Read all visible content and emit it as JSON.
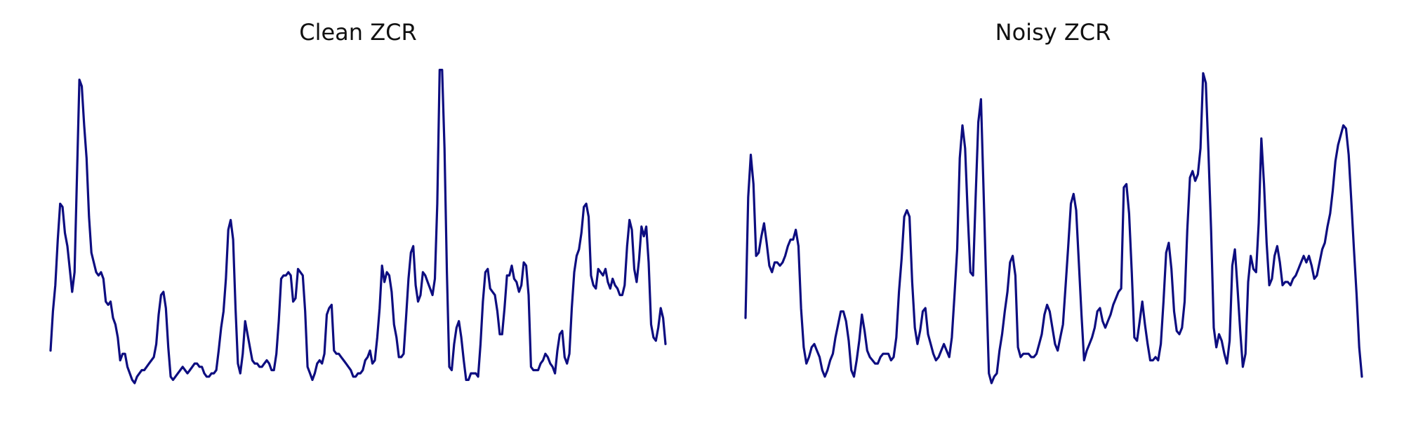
{
  "colors": {
    "line": "#0d0d80",
    "background": "#ffffff"
  },
  "chart_data": [
    {
      "type": "line",
      "title": "Clean ZCR",
      "xlabel": "",
      "ylabel": "",
      "axes": "off",
      "grid": false,
      "legend": "none",
      "ylim": [
        0,
        1
      ],
      "series": [
        {
          "values": [
            0.13,
            0.25,
            0.33,
            0.47,
            0.58,
            0.57,
            0.49,
            0.45,
            0.38,
            0.31,
            0.37,
            0.66,
            0.96,
            0.94,
            0.82,
            0.72,
            0.54,
            0.43,
            0.4,
            0.37,
            0.36,
            0.37,
            0.35,
            0.28,
            0.27,
            0.28,
            0.23,
            0.21,
            0.17,
            0.1,
            0.12,
            0.12,
            0.08,
            0.06,
            0.04,
            0.03,
            0.05,
            0.06,
            0.07,
            0.07,
            0.08,
            0.09,
            0.1,
            0.11,
            0.15,
            0.24,
            0.3,
            0.31,
            0.26,
            0.14,
            0.05,
            0.04,
            0.05,
            0.06,
            0.07,
            0.08,
            0.07,
            0.06,
            0.07,
            0.08,
            0.09,
            0.09,
            0.08,
            0.08,
            0.06,
            0.05,
            0.05,
            0.06,
            0.06,
            0.07,
            0.13,
            0.2,
            0.25,
            0.35,
            0.5,
            0.53,
            0.47,
            0.26,
            0.09,
            0.06,
            0.12,
            0.22,
            0.18,
            0.14,
            0.1,
            0.09,
            0.09,
            0.08,
            0.08,
            0.09,
            0.1,
            0.09,
            0.07,
            0.07,
            0.12,
            0.22,
            0.35,
            0.36,
            0.36,
            0.37,
            0.36,
            0.28,
            0.29,
            0.38,
            0.37,
            0.36,
            0.25,
            0.08,
            0.06,
            0.04,
            0.06,
            0.09,
            0.1,
            0.09,
            0.12,
            0.24,
            0.26,
            0.27,
            0.13,
            0.12,
            0.12,
            0.11,
            0.1,
            0.09,
            0.08,
            0.07,
            0.05,
            0.05,
            0.06,
            0.06,
            0.07,
            0.1,
            0.11,
            0.13,
            0.09,
            0.1,
            0.17,
            0.26,
            0.39,
            0.34,
            0.37,
            0.36,
            0.31,
            0.21,
            0.17,
            0.11,
            0.11,
            0.12,
            0.23,
            0.35,
            0.43,
            0.45,
            0.33,
            0.28,
            0.3,
            0.37,
            0.36,
            0.34,
            0.32,
            0.3,
            0.35,
            0.58,
            0.99,
            0.99,
            0.75,
            0.37,
            0.08,
            0.07,
            0.15,
            0.2,
            0.22,
            0.17,
            0.1,
            0.04,
            0.04,
            0.06,
            0.06,
            0.06,
            0.05,
            0.15,
            0.28,
            0.37,
            0.38,
            0.32,
            0.31,
            0.3,
            0.25,
            0.18,
            0.18,
            0.26,
            0.36,
            0.36,
            0.39,
            0.35,
            0.34,
            0.31,
            0.33,
            0.4,
            0.39,
            0.3,
            0.08,
            0.07,
            0.07,
            0.07,
            0.09,
            0.1,
            0.12,
            0.11,
            0.09,
            0.08,
            0.06,
            0.13,
            0.18,
            0.19,
            0.11,
            0.09,
            0.12,
            0.26,
            0.37,
            0.42,
            0.44,
            0.49,
            0.57,
            0.58,
            0.54,
            0.36,
            0.33,
            0.32,
            0.38,
            0.37,
            0.36,
            0.38,
            0.34,
            0.32,
            0.35,
            0.33,
            0.32,
            0.3,
            0.3,
            0.33,
            0.45,
            0.53,
            0.5,
            0.38,
            0.34,
            0.41,
            0.51,
            0.48,
            0.51,
            0.4,
            0.21,
            0.17,
            0.16,
            0.2,
            0.26,
            0.23,
            0.15
          ]
        }
      ]
    },
    {
      "type": "line",
      "title": "Noisy ZCR",
      "xlabel": "",
      "ylabel": "",
      "axes": "off",
      "grid": false,
      "legend": "none",
      "ylim": [
        0,
        1
      ],
      "series": [
        {
          "values": [
            0.23,
            0.6,
            0.73,
            0.64,
            0.42,
            0.43,
            0.48,
            0.52,
            0.46,
            0.39,
            0.37,
            0.4,
            0.4,
            0.39,
            0.4,
            0.42,
            0.45,
            0.47,
            0.47,
            0.5,
            0.45,
            0.26,
            0.14,
            0.09,
            0.11,
            0.14,
            0.15,
            0.13,
            0.11,
            0.07,
            0.05,
            0.07,
            0.1,
            0.12,
            0.17,
            0.21,
            0.25,
            0.25,
            0.22,
            0.16,
            0.07,
            0.05,
            0.1,
            0.16,
            0.24,
            0.19,
            0.13,
            0.11,
            0.1,
            0.09,
            0.09,
            0.11,
            0.12,
            0.12,
            0.12,
            0.1,
            0.11,
            0.17,
            0.31,
            0.41,
            0.54,
            0.56,
            0.54,
            0.34,
            0.2,
            0.15,
            0.19,
            0.25,
            0.26,
            0.18,
            0.15,
            0.12,
            0.1,
            0.11,
            0.13,
            0.15,
            0.13,
            0.11,
            0.17,
            0.3,
            0.44,
            0.72,
            0.82,
            0.75,
            0.55,
            0.37,
            0.36,
            0.6,
            0.83,
            0.9,
            0.62,
            0.33,
            0.06,
            0.03,
            0.05,
            0.06,
            0.13,
            0.18,
            0.25,
            0.31,
            0.4,
            0.42,
            0.36,
            0.14,
            0.11,
            0.12,
            0.12,
            0.12,
            0.11,
            0.11,
            0.12,
            0.15,
            0.18,
            0.24,
            0.27,
            0.25,
            0.2,
            0.15,
            0.13,
            0.17,
            0.21,
            0.33,
            0.45,
            0.58,
            0.61,
            0.56,
            0.4,
            0.24,
            0.1,
            0.13,
            0.15,
            0.17,
            0.2,
            0.25,
            0.26,
            0.22,
            0.2,
            0.22,
            0.24,
            0.27,
            0.29,
            0.31,
            0.32,
            0.63,
            0.64,
            0.55,
            0.37,
            0.17,
            0.16,
            0.22,
            0.28,
            0.21,
            0.15,
            0.1,
            0.1,
            0.11,
            0.1,
            0.15,
            0.28,
            0.43,
            0.46,
            0.38,
            0.25,
            0.19,
            0.18,
            0.2,
            0.28,
            0.5,
            0.66,
            0.68,
            0.65,
            0.67,
            0.75,
            0.98,
            0.95,
            0.74,
            0.5,
            0.2,
            0.14,
            0.18,
            0.16,
            0.12,
            0.09,
            0.16,
            0.39,
            0.44,
            0.32,
            0.19,
            0.08,
            0.12,
            0.34,
            0.42,
            0.38,
            0.37,
            0.52,
            0.78,
            0.64,
            0.46,
            0.33,
            0.35,
            0.42,
            0.45,
            0.4,
            0.33,
            0.34,
            0.34,
            0.33,
            0.35,
            0.36,
            0.38,
            0.4,
            0.42,
            0.4,
            0.42,
            0.39,
            0.35,
            0.36,
            0.4,
            0.44,
            0.46,
            0.51,
            0.55,
            0.62,
            0.71,
            0.76,
            0.79,
            0.82,
            0.81,
            0.73,
            0.59,
            0.44,
            0.3,
            0.14,
            0.05
          ]
        }
      ]
    }
  ]
}
